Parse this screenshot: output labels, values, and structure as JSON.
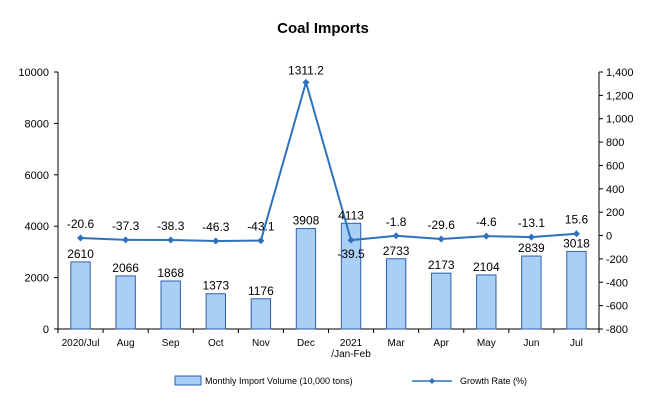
{
  "chart_data": {
    "type": "bar",
    "title": "Coal Imports",
    "categories": [
      [
        "2020/Jul"
      ],
      [
        "Aug"
      ],
      [
        "Sep"
      ],
      [
        "Oct"
      ],
      [
        "Nov"
      ],
      [
        "Dec"
      ],
      [
        "2021",
        "/Jan-Feb"
      ],
      [
        "Mar"
      ],
      [
        "Apr"
      ],
      [
        "May"
      ],
      [
        "Jun"
      ],
      [
        "Jul"
      ]
    ],
    "series": [
      {
        "name": "Monthly Import Volume (10,000 tons)",
        "type": "bar",
        "axis": "left",
        "color": "#a9cff5",
        "edge_color": "#2f5fa8",
        "values": [
          2610,
          2066,
          1868,
          1373,
          1176,
          3908,
          4113,
          2733,
          2173,
          2104,
          2839,
          3018
        ],
        "labels": [
          "2610",
          "2066",
          "1868",
          "1373",
          "1176",
          "3908",
          "4113",
          "2733",
          "2173",
          "2104",
          "2839",
          "3018"
        ]
      },
      {
        "name": "Growth Rate (%)",
        "type": "line",
        "axis": "right",
        "color": "#2e72bd",
        "marker": "diamond",
        "values": [
          -20.6,
          -37.3,
          -38.3,
          -46.3,
          -43.1,
          1311.2,
          -39.5,
          -1.8,
          -29.6,
          -4.6,
          -13.1,
          15.6
        ],
        "labels": [
          "-20.6",
          "-37.3",
          "-38.3",
          "-46.3",
          "-43.1",
          "1311.2",
          "-39.5",
          "-1.8",
          "-29.6",
          "-4.6",
          "-13.1",
          "15.6"
        ]
      }
    ],
    "y_left": {
      "min": 0,
      "max": 10000,
      "ticks": [
        0,
        2000,
        4000,
        6000,
        8000,
        10000
      ],
      "tick_labels": [
        "0",
        "2000",
        "4000",
        "6000",
        "8000",
        "10000"
      ]
    },
    "y_right": {
      "min": -800,
      "max": 1400,
      "ticks": [
        -800,
        -600,
        -400,
        -200,
        0,
        200,
        400,
        600,
        800,
        1000,
        1200,
        1400
      ],
      "tick_labels": [
        "-800",
        "-600",
        "-400",
        "-200",
        "0",
        "200",
        "400",
        "600",
        "800",
        "1,000",
        "1,200",
        "1,400"
      ]
    },
    "grid": false,
    "legend_position": "bottom"
  }
}
